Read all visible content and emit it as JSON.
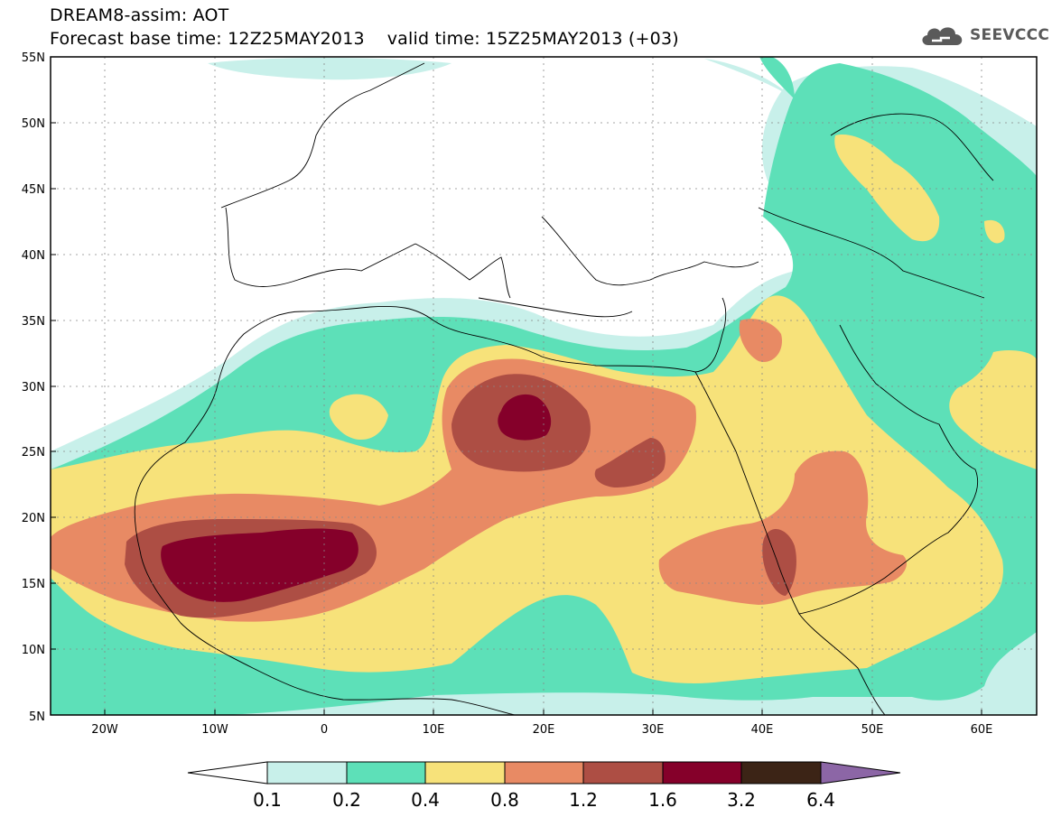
{
  "header": {
    "title": "DREAM8-assim: AOT",
    "subtitle": "Forecast base time: 12Z25MAY2013    valid time: 15Z25MAY2013 (+03)",
    "logo_text": "SEEVCCC"
  },
  "map": {
    "projection": "lat-lon",
    "lon_range": [
      -25,
      65
    ],
    "lat_range": [
      5,
      55
    ],
    "lat_ticks": [
      "5N",
      "10N",
      "15N",
      "20N",
      "25N",
      "30N",
      "35N",
      "40N",
      "45N",
      "50N",
      "55N"
    ],
    "lon_ticks": [
      "20W",
      "10W",
      "0",
      "10E",
      "20E",
      "30E",
      "40E",
      "50E",
      "60E"
    ],
    "gridlines": "dotted"
  },
  "colorbar": {
    "labels": [
      "0.1",
      "0.2",
      "0.4",
      "0.8",
      "1.2",
      "1.6",
      "3.2",
      "6.4"
    ],
    "colors": [
      "#ffffff",
      "#c8f0ea",
      "#5de0b8",
      "#f7e27a",
      "#e88a64",
      "#ad4e44",
      "#85002a",
      "#3c2416",
      "#8c66a6"
    ]
  },
  "levels_colors": {
    "0.1-0.2": "#c8f0ea",
    "0.2-0.4": "#5de0b8",
    "0.4-0.8": "#f7e27a",
    "0.8-1.2": "#e88a64",
    "1.2-1.6": "#ad4e44",
    "1.6-3.2": "#85002a"
  }
}
